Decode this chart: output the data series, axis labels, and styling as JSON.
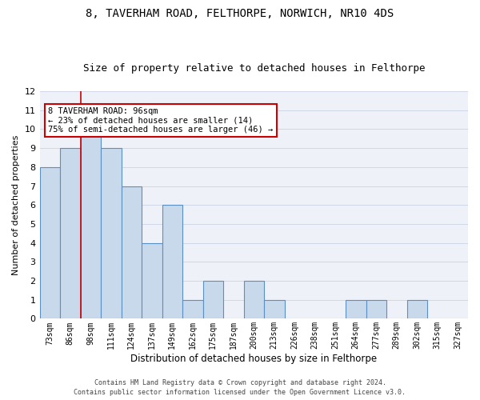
{
  "title1": "8, TAVERHAM ROAD, FELTHORPE, NORWICH, NR10 4DS",
  "title2": "Size of property relative to detached houses in Felthorpe",
  "xlabel": "Distribution of detached houses by size in Felthorpe",
  "ylabel": "Number of detached properties",
  "categories": [
    "73sqm",
    "86sqm",
    "98sqm",
    "111sqm",
    "124sqm",
    "137sqm",
    "149sqm",
    "162sqm",
    "175sqm",
    "187sqm",
    "200sqm",
    "213sqm",
    "226sqm",
    "238sqm",
    "251sqm",
    "264sqm",
    "277sqm",
    "289sqm",
    "302sqm",
    "315sqm",
    "327sqm"
  ],
  "values": [
    8,
    9,
    10,
    9,
    7,
    4,
    6,
    1,
    2,
    0,
    2,
    1,
    0,
    0,
    0,
    1,
    1,
    0,
    1,
    0,
    0
  ],
  "bar_color": "#c9d9ec",
  "bar_edge_color": "#5a8fc3",
  "bar_linewidth": 0.8,
  "vline_color": "#cc0000",
  "annotation_text": "8 TAVERHAM ROAD: 96sqm\n← 23% of detached houses are smaller (14)\n75% of semi-detached houses are larger (46) →",
  "annotation_box_color": "#cc0000",
  "ylim": [
    0,
    12
  ],
  "yticks": [
    0,
    1,
    2,
    3,
    4,
    5,
    6,
    7,
    8,
    9,
    10,
    11,
    12
  ],
  "grid_color": "#d0d8e8",
  "bg_color": "#eef2f8",
  "footer1": "Contains HM Land Registry data © Crown copyright and database right 2024.",
  "footer2": "Contains public sector information licensed under the Open Government Licence v3.0.",
  "title1_fontsize": 10,
  "title2_fontsize": 9,
  "tick_fontsize": 7,
  "ylabel_fontsize": 8,
  "xlabel_fontsize": 8.5,
  "annot_fontsize": 7.5,
  "footer_fontsize": 6
}
